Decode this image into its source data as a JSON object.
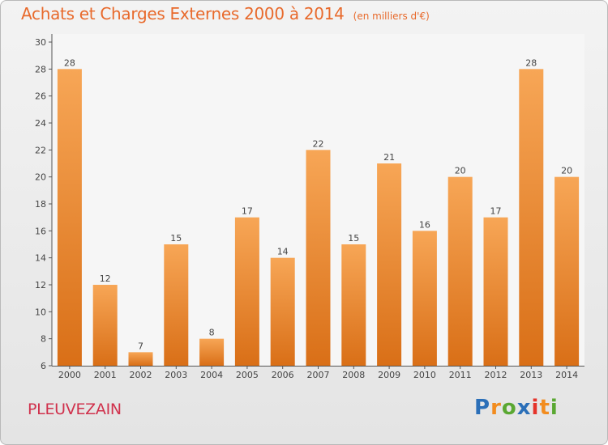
{
  "chart_data": {
    "type": "bar",
    "title": "Achats et Charges Externes 2000 à 2014",
    "unit": "(en milliers d'€)",
    "categories": [
      "2000",
      "2001",
      "2002",
      "2003",
      "2004",
      "2005",
      "2006",
      "2007",
      "2008",
      "2009",
      "2010",
      "2011",
      "2012",
      "2013",
      "2014"
    ],
    "values": [
      28,
      12,
      7,
      15,
      8,
      17,
      14,
      22,
      15,
      21,
      16,
      20,
      17,
      28,
      20
    ],
    "yticks": [
      6,
      8,
      10,
      12,
      14,
      16,
      18,
      20,
      22,
      24,
      26,
      28,
      30
    ],
    "ylim": [
      6,
      30
    ],
    "grid": false,
    "bar_color_top": "#f7a656",
    "bar_color_bottom": "#d96f17"
  },
  "footer": {
    "town": "PLEUVEZAIN",
    "brand_letters": [
      "P",
      "r",
      "o",
      "x",
      "i",
      "t",
      "i"
    ],
    "brand_colors": [
      "#2b6fb8",
      "#f28c1e",
      "#5aa832",
      "#2b6fb8",
      "#e5332a",
      "#f28c1e",
      "#5aa832"
    ]
  }
}
